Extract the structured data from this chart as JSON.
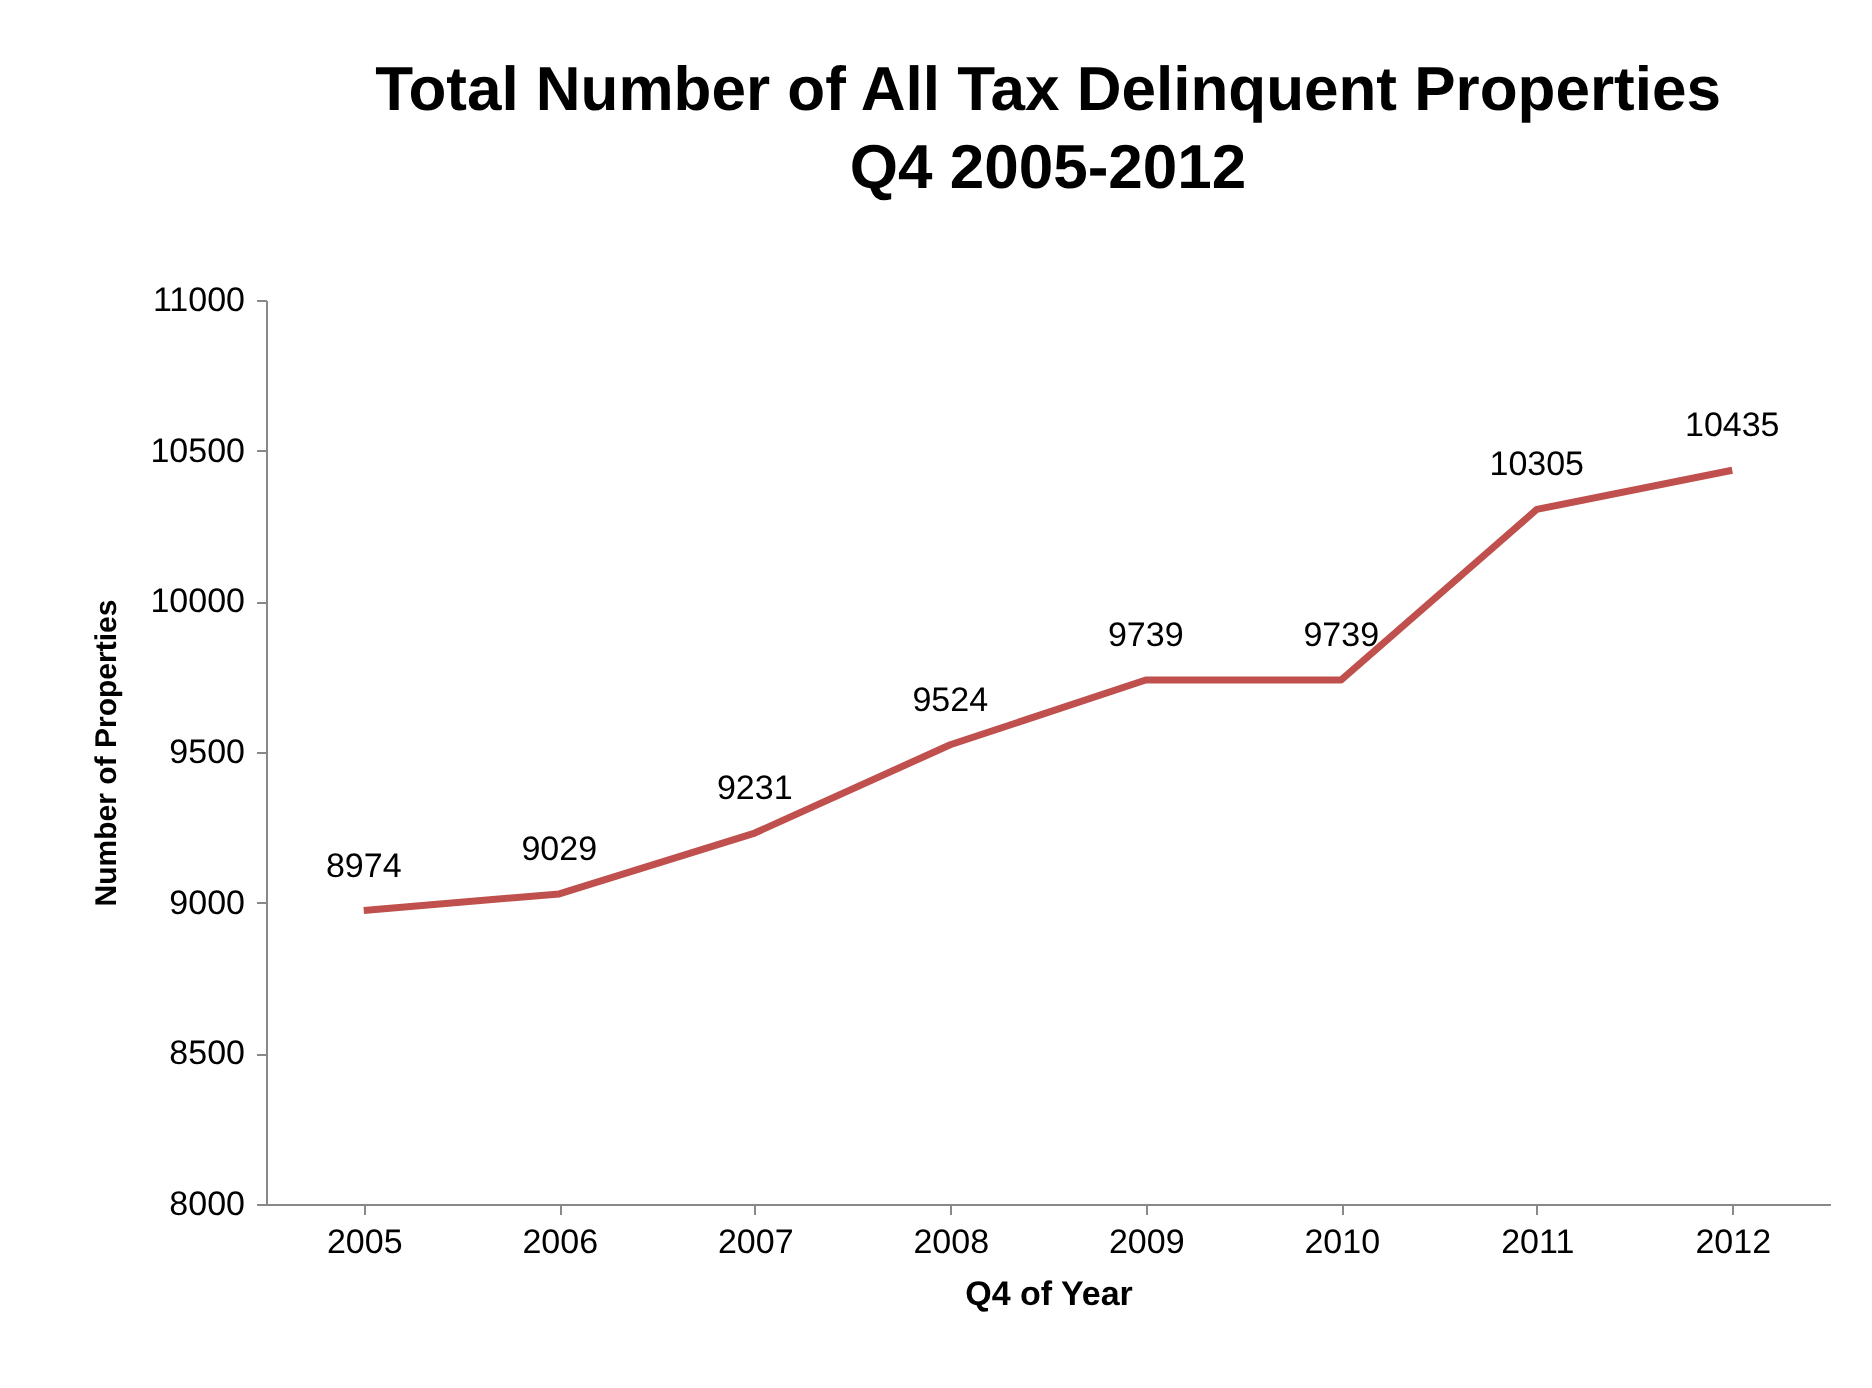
{
  "chart_data": {
    "type": "line",
    "title": "Total Number of All Tax Delinquent Properties",
    "subtitle": "Q4 2005-2012",
    "xlabel": "Q4 of Year",
    "ylabel": "Number of Properties",
    "categories": [
      "2005",
      "2006",
      "2007",
      "2008",
      "2009",
      "2010",
      "2011",
      "2012"
    ],
    "series": [
      {
        "color": "#c0504d",
        "values": [
          8974,
          9029,
          9231,
          9524,
          9739,
          9739,
          10305,
          10435
        ]
      }
    ],
    "ylim": [
      8000,
      11000
    ],
    "yticks": [
      8000,
      8500,
      9000,
      9500,
      10000,
      10500,
      11000
    ],
    "grid": false,
    "legend": false,
    "marker": "none",
    "line_style": "solid",
    "data_labels": true
  }
}
